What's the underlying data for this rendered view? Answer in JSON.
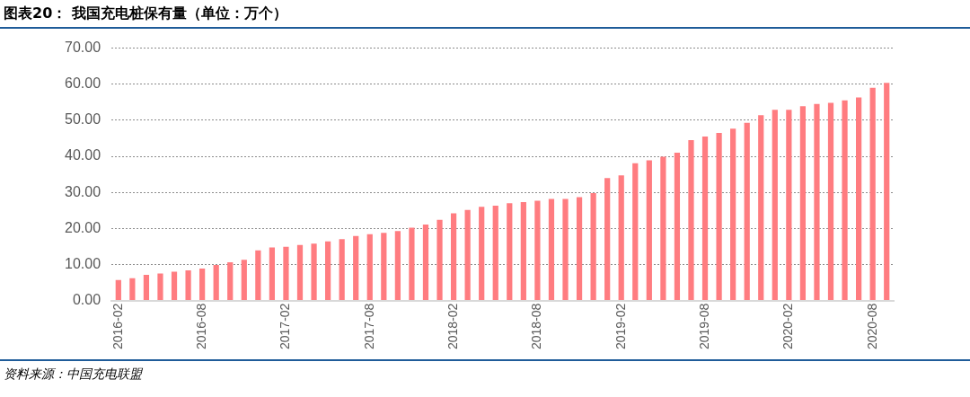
{
  "chart_data": {
    "type": "bar",
    "title": "图表20： 我国充电桩保有量（单位：万个）",
    "categories": [
      "2016-02",
      null,
      null,
      null,
      null,
      null,
      "2016-08",
      null,
      null,
      null,
      null,
      null,
      "2017-02",
      null,
      null,
      null,
      null,
      null,
      "2017-08",
      null,
      null,
      null,
      null,
      null,
      "2018-02",
      null,
      null,
      null,
      null,
      null,
      "2018-08",
      null,
      null,
      null,
      null,
      null,
      "2019-02",
      null,
      null,
      null,
      null,
      null,
      "2019-08",
      null,
      null,
      null,
      null,
      null,
      "2020-02",
      null,
      null,
      null,
      null,
      null,
      "2020-08",
      null
    ],
    "series": [
      {
        "color": "#ff7c80",
        "values": [
          5.7,
          6.2,
          7.1,
          7.5,
          8.0,
          8.4,
          8.9,
          9.9,
          10.6,
          11.3,
          13.9,
          14.7,
          14.9,
          15.4,
          15.8,
          16.4,
          17.0,
          17.9,
          18.4,
          18.8,
          19.3,
          20.2,
          21.1,
          22.4,
          24.2,
          25.1,
          26.0,
          26.3,
          27.0,
          27.3,
          27.7,
          28.2,
          28.2,
          28.7,
          29.8,
          34.0,
          34.7,
          38.1,
          38.9,
          39.9,
          41.0,
          44.5,
          45.5,
          46.5,
          47.7,
          49.3,
          51.4,
          52.9,
          52.9,
          53.9,
          54.5,
          54.8,
          55.5,
          56.3,
          59.0,
          60.4
        ]
      }
    ],
    "ylim": [
      0,
      70
    ],
    "yticks": [
      {
        "value": 0,
        "label": "0.00"
      },
      {
        "value": 10,
        "label": "10.00"
      },
      {
        "value": 20,
        "label": "20.00"
      },
      {
        "value": 30,
        "label": "30.00"
      },
      {
        "value": 40,
        "label": "40.00"
      },
      {
        "value": 50,
        "label": "50.00"
      },
      {
        "value": 60,
        "label": "60.00"
      },
      {
        "value": 70,
        "label": "70.00"
      }
    ],
    "grid": "y",
    "legend": false,
    "annotations": [
      "资料来源：中国充电联盟"
    ]
  }
}
